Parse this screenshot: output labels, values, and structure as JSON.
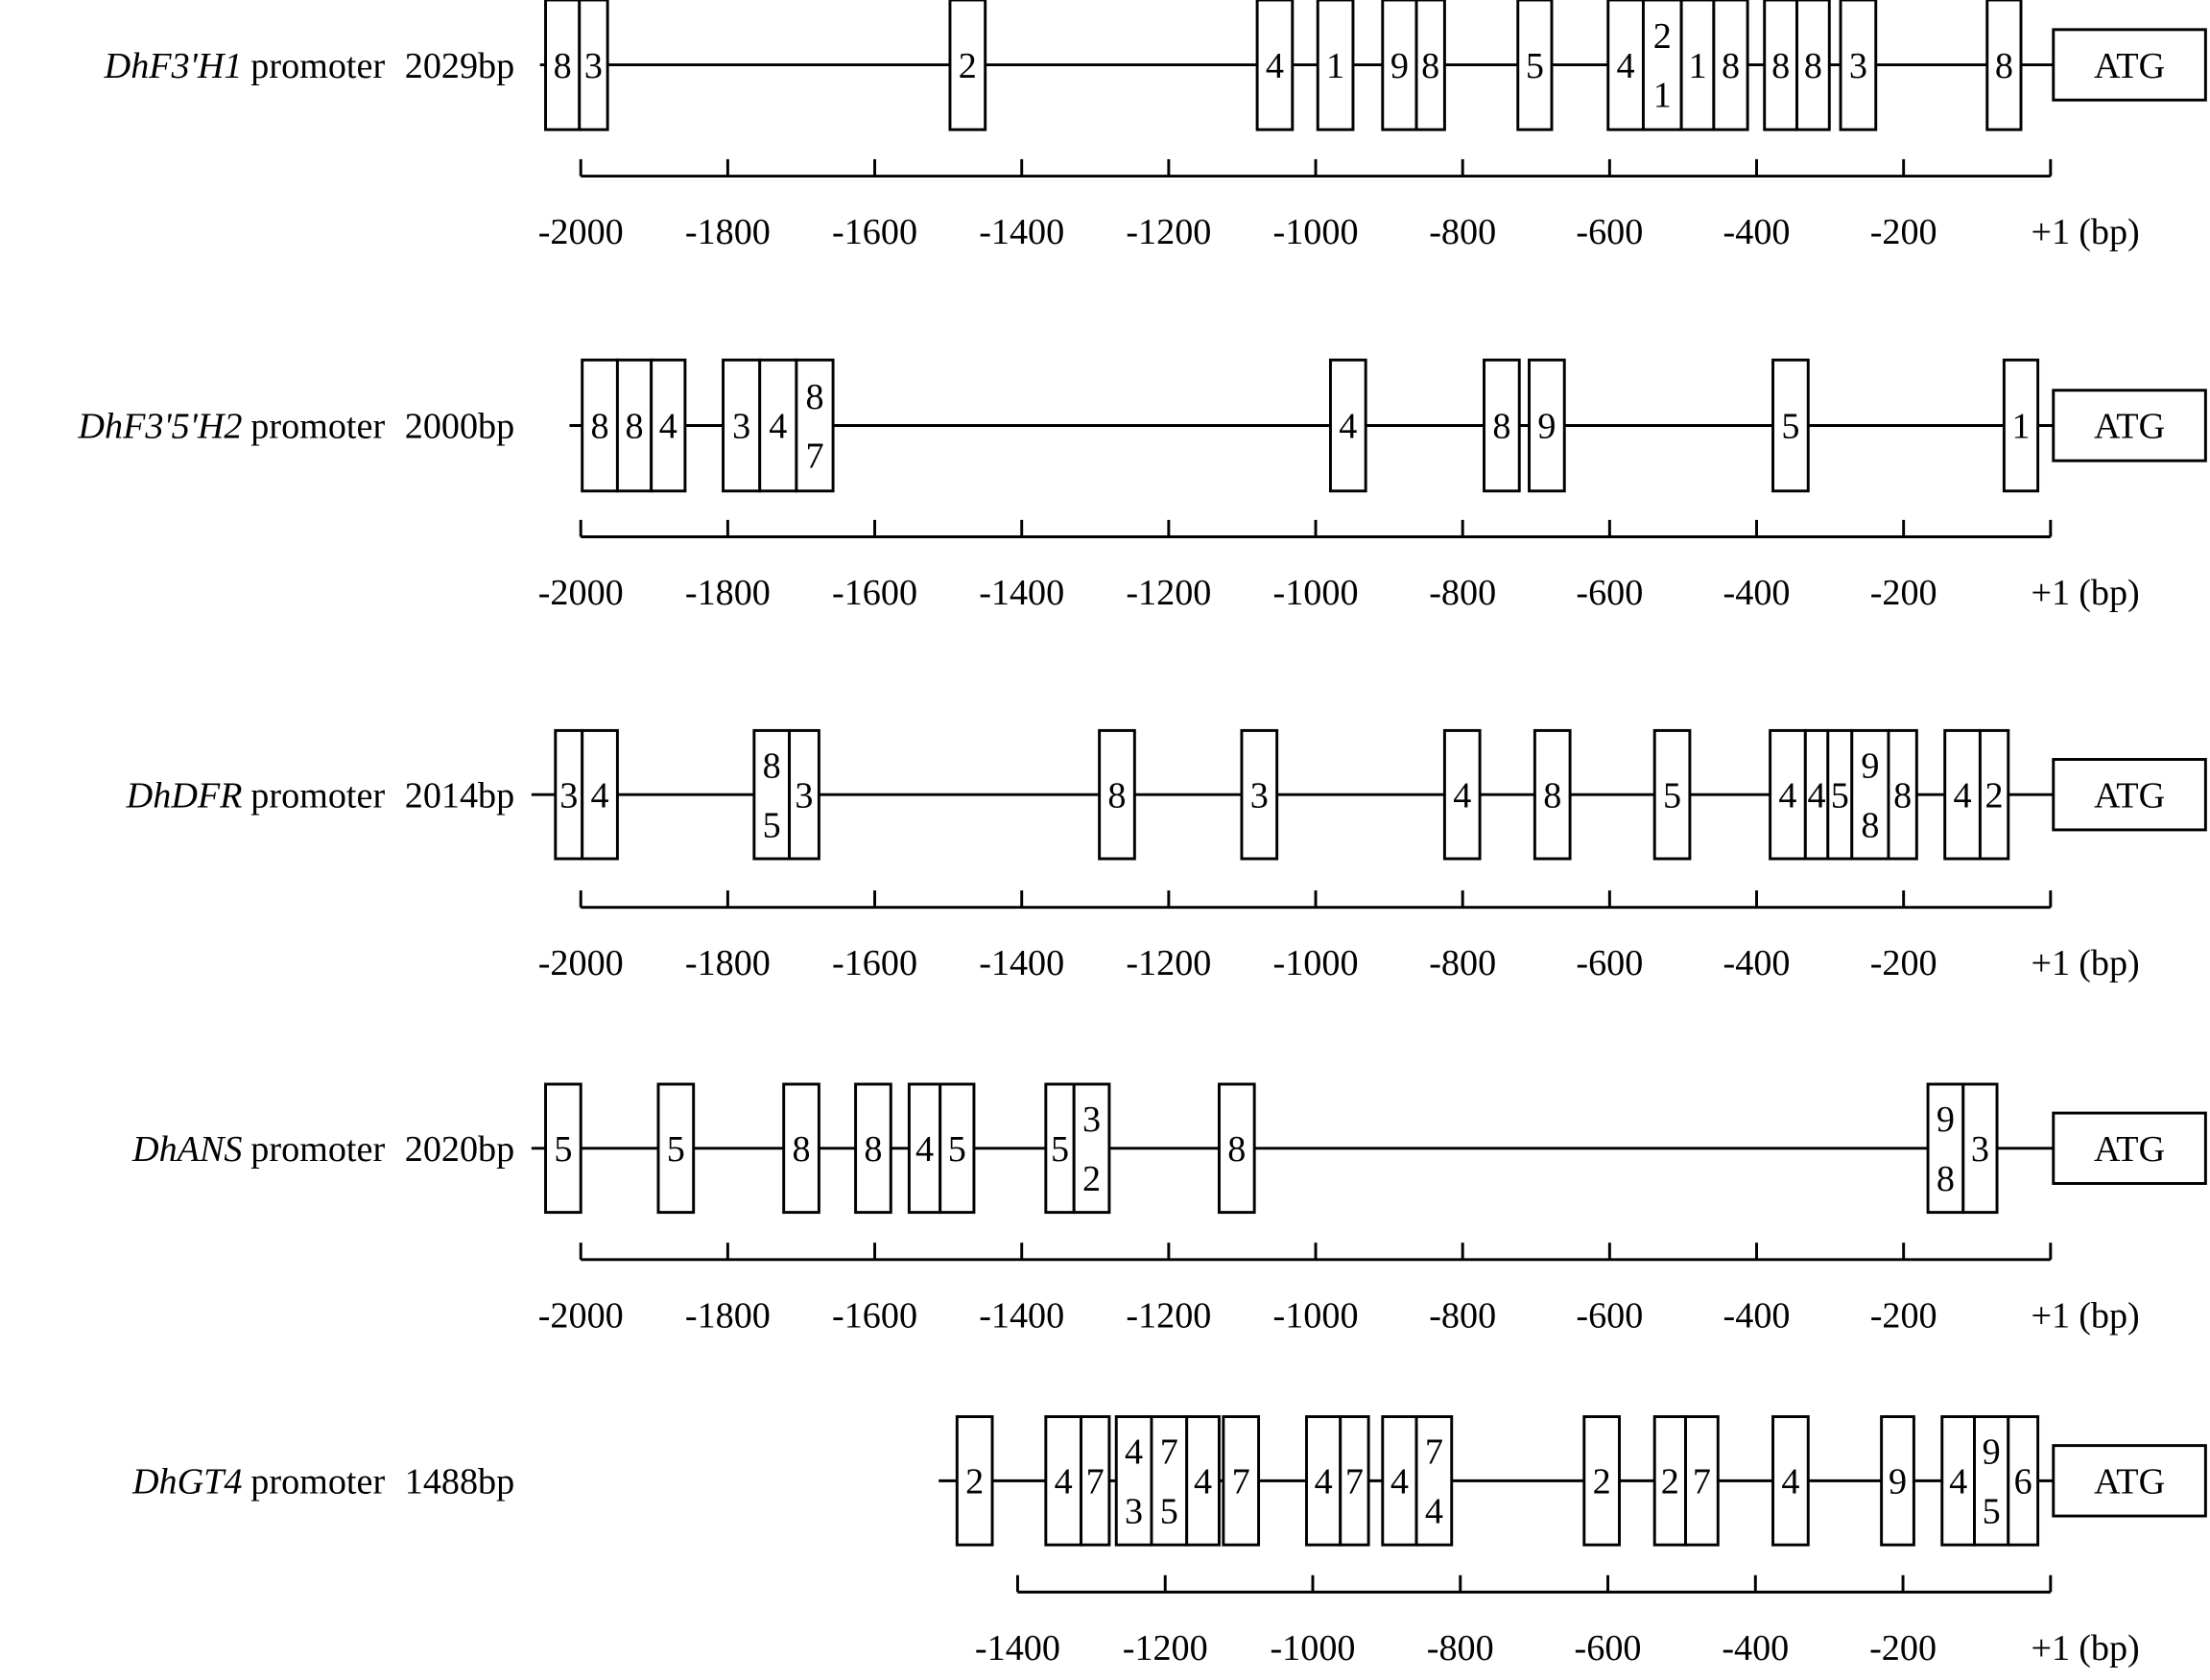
{
  "rows": [
    {
      "gene": "DhF3'H1",
      "word": "promoter",
      "length": "2029bp",
      "boxes": [
        [
          "8"
        ],
        [
          "3"
        ],
        [
          "2"
        ],
        [
          "4"
        ],
        [
          "1"
        ],
        [
          "9"
        ],
        [
          "8"
        ],
        [
          "5"
        ],
        [
          "4"
        ],
        [
          "2",
          "1"
        ],
        [
          "1"
        ],
        [
          "8"
        ],
        [
          "8"
        ],
        [
          "8"
        ],
        [
          "3"
        ],
        [
          "8"
        ]
      ],
      "ticks": [
        "-2000",
        "-1800",
        "-1600",
        "-1400",
        "-1200",
        "-1000",
        "-800",
        "-600",
        "-400",
        "-200",
        "+1"
      ],
      "unit": "(bp)",
      "end": "ATG"
    },
    {
      "gene": "DhF3'5'H2",
      "word": "promoter",
      "length": "2000bp",
      "boxes": [
        [
          "8"
        ],
        [
          "8"
        ],
        [
          "4"
        ],
        [
          "3"
        ],
        [
          "4"
        ],
        [
          "8",
          "7"
        ],
        [
          "4"
        ],
        [
          "8"
        ],
        [
          "9"
        ],
        [
          "5"
        ],
        [
          "1"
        ]
      ],
      "ticks": [
        "-2000",
        "-1800",
        "-1600",
        "-1400",
        "-1200",
        "-1000",
        "-800",
        "-600",
        "-400",
        "-200",
        "+1"
      ],
      "unit": "(bp)",
      "end": "ATG"
    },
    {
      "gene": "DhDFR",
      "word": "promoter",
      "length": "2014bp",
      "boxes": [
        [
          "3"
        ],
        [
          "4"
        ],
        [
          "8",
          "5"
        ],
        [
          "3"
        ],
        [
          "8"
        ],
        [
          "3"
        ],
        [
          "4"
        ],
        [
          "8"
        ],
        [
          "5"
        ],
        [
          "4"
        ],
        [
          "4"
        ],
        [
          "5"
        ],
        [
          "9",
          "8"
        ],
        [
          "8"
        ],
        [
          "4"
        ],
        [
          "2"
        ]
      ],
      "ticks": [
        "-2000",
        "-1800",
        "-1600",
        "-1400",
        "-1200",
        "-1000",
        "-800",
        "-600",
        "-400",
        "-200",
        "+1"
      ],
      "unit": "(bp)",
      "end": "ATG"
    },
    {
      "gene": "DhANS",
      "word": "promoter",
      "length": "2020bp",
      "boxes": [
        [
          "5"
        ],
        [
          "5"
        ],
        [
          "8"
        ],
        [
          "8"
        ],
        [
          "4"
        ],
        [
          "5"
        ],
        [
          "5"
        ],
        [
          "3",
          "2"
        ],
        [
          "8"
        ],
        [
          "9",
          "8"
        ],
        [
          "3"
        ]
      ],
      "ticks": [
        "-2000",
        "-1800",
        "-1600",
        "-1400",
        "-1200",
        "-1000",
        "-800",
        "-600",
        "-400",
        "-200",
        "+1"
      ],
      "unit": "(bp)",
      "end": "ATG"
    },
    {
      "gene": "DhGT4",
      "word": "promoter",
      "length": "1488bp",
      "boxes": [
        [
          "2"
        ],
        [
          "4"
        ],
        [
          "7"
        ],
        [
          "4",
          "3"
        ],
        [
          "7",
          "5"
        ],
        [
          "4"
        ],
        [
          "7"
        ],
        [
          "4"
        ],
        [
          "7"
        ],
        [
          "4"
        ],
        [
          "7",
          "4"
        ],
        [
          "2"
        ],
        [
          "2"
        ],
        [
          "7"
        ],
        [
          "4"
        ],
        [
          "9"
        ],
        [
          "4"
        ],
        [
          "9",
          "5"
        ],
        [
          "6"
        ]
      ],
      "ticks": [
        "-1400",
        "-1200",
        "-1000",
        "-800",
        "-600",
        "-400",
        "-200",
        "+1"
      ],
      "unit": "(bp)",
      "end": "ATG"
    }
  ]
}
